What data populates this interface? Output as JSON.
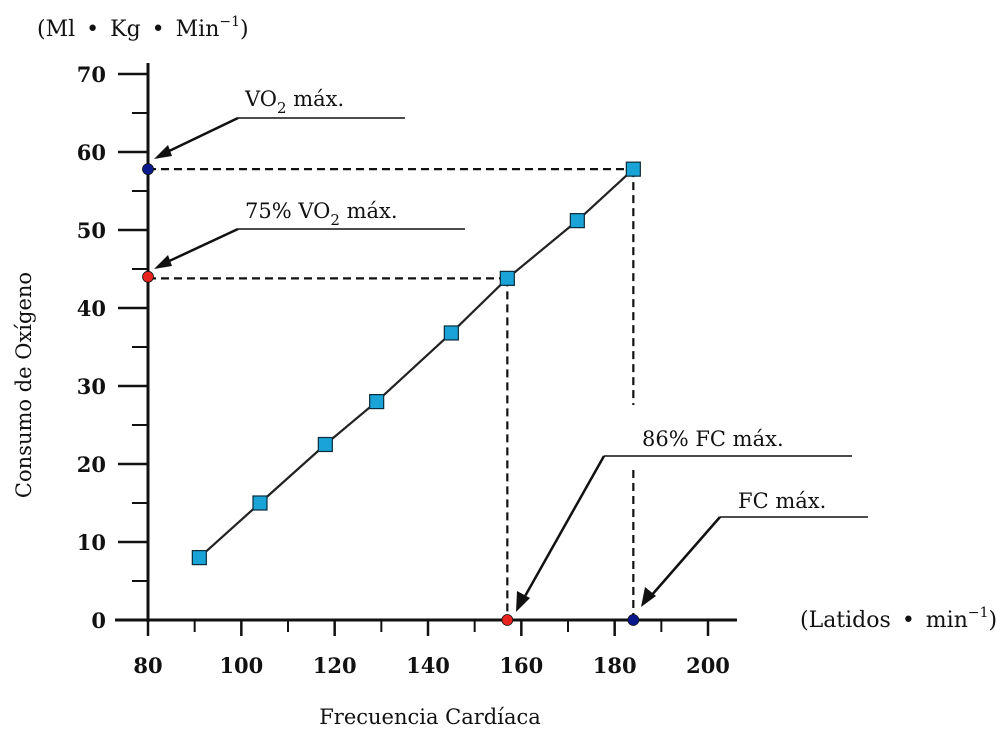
{
  "chart_data": {
    "type": "scatter",
    "title": "",
    "xlabel": "Frecuencia Cardíaca",
    "ylabel": "Consumo de Oxígeno",
    "x_unit": {
      "prefix": "(Latidos",
      "dot": "•",
      "middle": "min",
      "sup": "−1",
      "suffix": ")"
    },
    "y_unit": {
      "prefix": "(Ml",
      "dot1": "•",
      "mid1": "Kg",
      "dot2": "•",
      "mid2": "Min",
      "sup": "−1",
      "suffix": ")"
    },
    "xlim": [
      80,
      200
    ],
    "ylim": [
      0,
      70
    ],
    "x_ticks": [
      "80",
      "100",
      "120",
      "140",
      "160",
      "180",
      "200"
    ],
    "y_ticks": [
      "0",
      "10",
      "20",
      "30",
      "40",
      "50",
      "60",
      "70"
    ],
    "grid": false,
    "series": [
      {
        "marker": "square",
        "color": "#1aa3d6",
        "line": true,
        "x": [
          91,
          104,
          118,
          129,
          145,
          157,
          172,
          184
        ],
        "y": [
          8,
          15,
          22.5,
          28,
          36.8,
          43.8,
          51.2,
          57.8
        ]
      }
    ],
    "points": [
      {
        "x": 80,
        "y": 57.8,
        "color": "#0a1a8c"
      },
      {
        "x": 80,
        "y": 44,
        "color": "#e8231e"
      },
      {
        "x": 157,
        "y": 0,
        "color": "#e8231e"
      },
      {
        "x": 184,
        "y": 0,
        "color": "#0a1a8c"
      }
    ],
    "annotations": {
      "vo2max": {
        "pre": "VO",
        "sub": "2",
        "post": " máx."
      },
      "vo2_75": {
        "pre": "75% VO",
        "sub": "2",
        "post": " máx."
      },
      "fc86": "86% FC máx.",
      "fcmax": "FC máx."
    }
  }
}
